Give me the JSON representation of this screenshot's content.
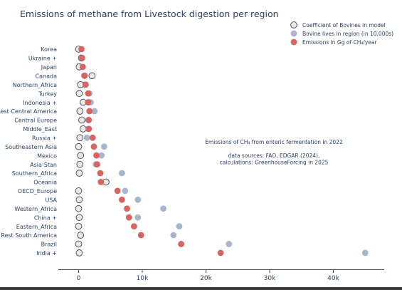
{
  "chart_data": {
    "type": "scatter",
    "title": "Emissions of methane from Livestock digestion per region",
    "xlabel": "",
    "ylabel": "",
    "xlim": [
      -3300,
      48000
    ],
    "xticks": [
      0,
      10000,
      20000,
      30000,
      40000
    ],
    "xtick_labels": [
      "0",
      "10k",
      "20k",
      "30k",
      "40k"
    ],
    "grid": false,
    "legend_position": "top-right",
    "categories": [
      "Korea",
      "Ukraine +",
      "Japan",
      "Canada",
      "Northern_Africa",
      "Turkey",
      "Indonesia +",
      "Rest Central America",
      "Central Europe",
      "Middle_East",
      "Russia +",
      "Southeastern Asia",
      "Mexico",
      "Asia-Stan",
      "Southern_Africa",
      "Oceania",
      "OECD_Europe",
      "USA",
      "Western_Africa",
      "China +",
      "Eastern_Africa",
      "Rest South America",
      "Brazil",
      "India +"
    ],
    "series": [
      {
        "name": "Coefficient of Bovines in model",
        "color": "#e8e8e8",
        "values": [
          0,
          450,
          100,
          2100,
          300,
          100,
          700,
          200,
          500,
          700,
          200,
          0,
          300,
          200,
          100,
          4300,
          0,
          100,
          0,
          100,
          0,
          300,
          0,
          100
        ]
      },
      {
        "name": "Bovine lives in region (in 10,000s)",
        "color": "#a9b4cf",
        "values": [
          150,
          550,
          400,
          1000,
          900,
          1700,
          1900,
          2500,
          1500,
          1500,
          1300,
          4000,
          3600,
          2700,
          6800,
          4300,
          7300,
          9300,
          13300,
          9300,
          15800,
          14900,
          23600,
          45000
        ]
      },
      {
        "name": "Emissions in Gg of CH₄/year",
        "color": "#d66562",
        "values": [
          450,
          550,
          650,
          900,
          1100,
          1500,
          1500,
          1700,
          1600,
          1600,
          2200,
          2400,
          2800,
          2900,
          3400,
          3500,
          6100,
          6800,
          7600,
          7900,
          8700,
          9800,
          16100,
          22300
        ]
      }
    ],
    "annotation": {
      "lines": [
        "Emissions of CH₄ from enteric fermentation in 2022",
        "",
        "data sources: FAO, EDGAR (2024),",
        "calculations: GreenhouseForcing in 2025"
      ]
    }
  }
}
